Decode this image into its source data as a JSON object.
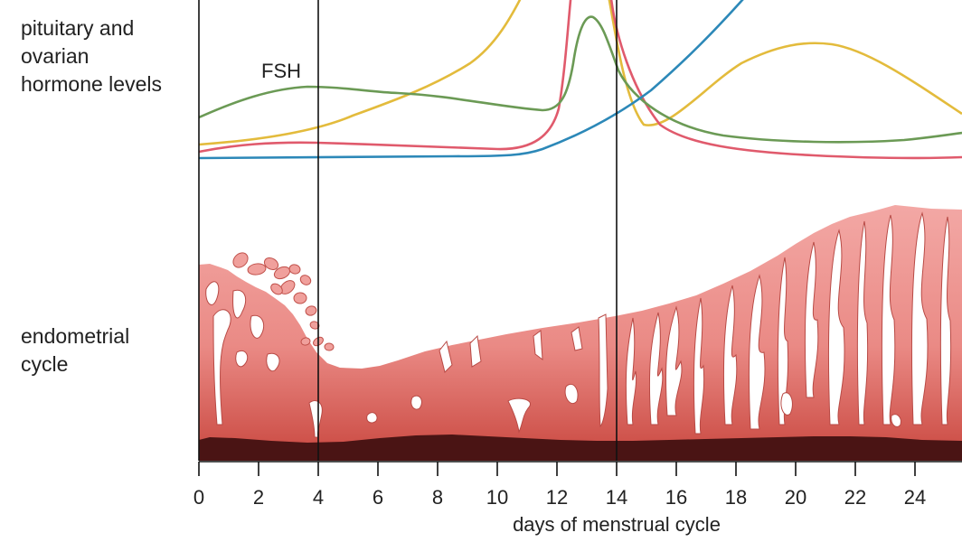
{
  "labels": {
    "hormone_row": "pituitary and\novarian\nhormone levels",
    "endometrial_row": "endometrial\ncycle",
    "fsh": "FSH"
  },
  "axis": {
    "title": "days of menstrual cycle",
    "ticks": [
      "0",
      "2",
      "4",
      "6",
      "8",
      "10",
      "12",
      "14",
      "16",
      "18",
      "20",
      "22",
      "24"
    ]
  },
  "hormones": [
    {
      "id": "fsh",
      "color": "#6b9a55"
    },
    {
      "id": "lh",
      "color": "#e05a6c"
    },
    {
      "id": "estrogen",
      "color": "#e3bb3c"
    },
    {
      "id": "progesterone",
      "color": "#2c88b8"
    }
  ],
  "colors": {
    "endometrium_top": "#f3a8a5",
    "endometrium_bottom": "#c9473f",
    "basal_layer": "#4a1414",
    "divider": "#111111"
  }
}
